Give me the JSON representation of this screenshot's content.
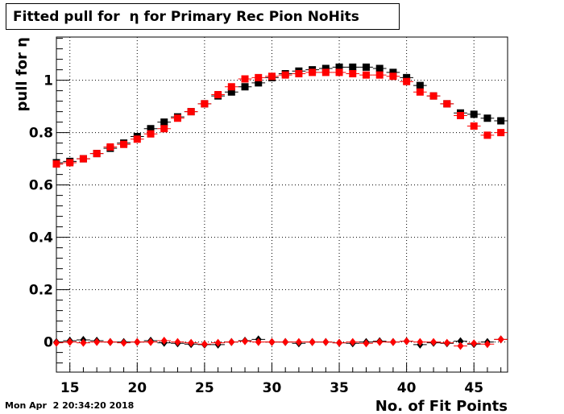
{
  "chart_data": {
    "type": "scatter",
    "title": "Fitted pull for  η for Primary Rec Pion NoHits",
    "xlabel": "No. of Fit Points",
    "ylabel": "pull for  η",
    "xlim": [
      14,
      47.5
    ],
    "ylim": [
      -0.115,
      1.165
    ],
    "x_ticks": [
      15,
      20,
      25,
      30,
      35,
      40,
      45
    ],
    "y_ticks": [
      0,
      0.2,
      0.4,
      0.6,
      0.8,
      1
    ],
    "y_tick_labels": [
      "0",
      "0.2",
      "0.4",
      "0.6",
      "0.8",
      "1"
    ],
    "grid": true,
    "series": [
      {
        "marker": "square",
        "color": "#000000",
        "x": [
          14,
          15,
          16,
          17,
          18,
          19,
          20,
          21,
          22,
          23,
          24,
          25,
          26,
          27,
          28,
          29,
          30,
          31,
          32,
          33,
          34,
          35,
          36,
          37,
          38,
          39,
          40,
          41,
          42,
          43,
          44,
          45,
          46,
          47
        ],
        "y": [
          0.685,
          0.69,
          0.7,
          0.72,
          0.74,
          0.76,
          0.785,
          0.815,
          0.84,
          0.86,
          0.88,
          0.91,
          0.94,
          0.955,
          0.975,
          0.99,
          1.01,
          1.025,
          1.035,
          1.04,
          1.045,
          1.05,
          1.05,
          1.05,
          1.045,
          1.03,
          1.01,
          0.98,
          0.94,
          0.91,
          0.875,
          0.87,
          0.855,
          0.845
        ]
      },
      {
        "marker": "square",
        "color": "#ff0000",
        "x": [
          14,
          15,
          16,
          17,
          18,
          19,
          20,
          21,
          22,
          23,
          24,
          25,
          26,
          27,
          28,
          29,
          30,
          31,
          32,
          33,
          34,
          35,
          36,
          37,
          38,
          39,
          40,
          41,
          42,
          43,
          44,
          45,
          46,
          47
        ],
        "y": [
          0.68,
          0.685,
          0.7,
          0.72,
          0.745,
          0.755,
          0.775,
          0.795,
          0.815,
          0.855,
          0.88,
          0.91,
          0.945,
          0.975,
          1.005,
          1.01,
          1.015,
          1.02,
          1.025,
          1.03,
          1.03,
          1.03,
          1.025,
          1.02,
          1.02,
          1.015,
          0.995,
          0.955,
          0.94,
          0.91,
          0.865,
          0.825,
          0.79,
          0.8
        ]
      },
      {
        "marker": "diamond",
        "color": "#000000",
        "x": [
          14,
          15,
          16,
          17,
          18,
          19,
          20,
          21,
          22,
          23,
          24,
          25,
          26,
          27,
          28,
          29,
          30,
          31,
          32,
          33,
          34,
          35,
          36,
          37,
          38,
          39,
          40,
          41,
          42,
          43,
          44,
          45,
          46,
          47
        ],
        "y": [
          0.0,
          0.005,
          0.008,
          0.005,
          0.0,
          0.0,
          0.0,
          0.005,
          -0.003,
          -0.005,
          -0.008,
          -0.01,
          -0.01,
          0.0,
          0.005,
          0.01,
          0.0,
          0.0,
          -0.005,
          0.0,
          0.0,
          -0.003,
          -0.005,
          0.0,
          0.003,
          0.0,
          0.003,
          -0.01,
          -0.003,
          -0.005,
          0.003,
          -0.008,
          0.0,
          0.01
        ]
      },
      {
        "marker": "diamond",
        "color": "#ff0000",
        "x": [
          14,
          15,
          16,
          17,
          18,
          19,
          20,
          21,
          22,
          23,
          24,
          25,
          26,
          27,
          28,
          29,
          30,
          31,
          32,
          33,
          34,
          35,
          36,
          37,
          38,
          39,
          40,
          41,
          42,
          43,
          44,
          45,
          46,
          47
        ],
        "y": [
          -0.003,
          0.0,
          -0.003,
          0.0,
          0.0,
          -0.003,
          0.0,
          0.0,
          0.005,
          0.0,
          -0.003,
          -0.008,
          -0.003,
          0.0,
          0.003,
          0.0,
          0.0,
          0.0,
          0.0,
          0.0,
          0.0,
          -0.003,
          0.0,
          -0.005,
          0.0,
          0.0,
          0.003,
          0.0,
          0.0,
          -0.003,
          -0.015,
          -0.005,
          -0.008,
          0.01
        ]
      }
    ]
  },
  "timestamp": "Mon Apr  2 20:34:20 2018"
}
